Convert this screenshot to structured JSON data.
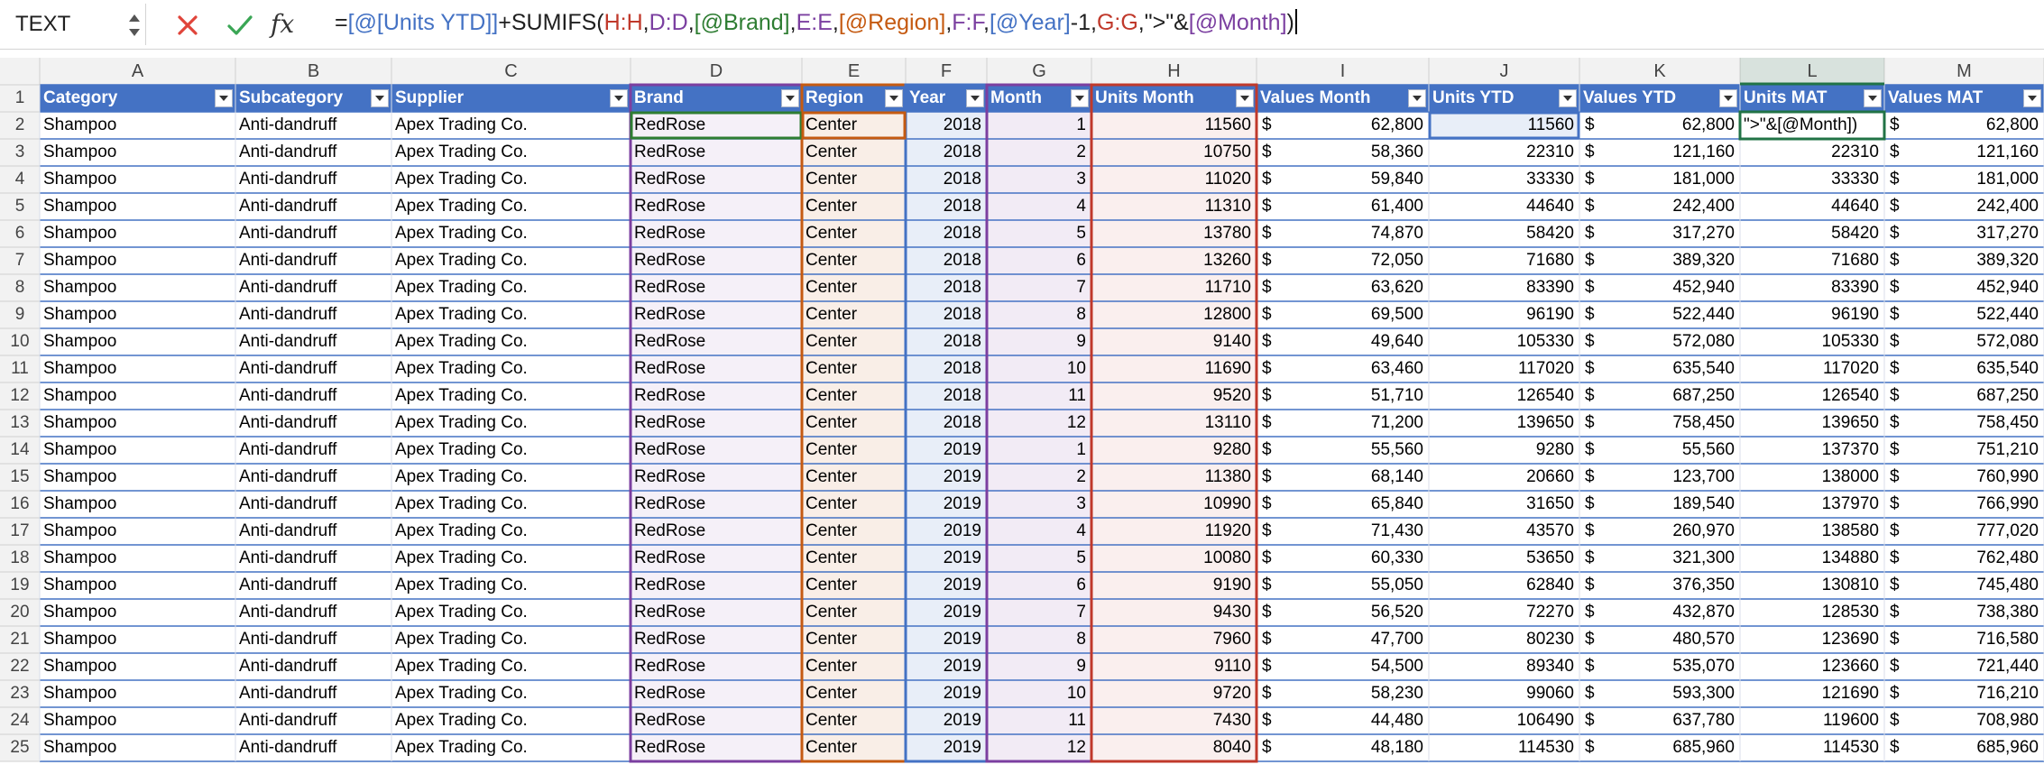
{
  "formula_bar": {
    "name_box": "TEXT",
    "cancel_icon": "x-icon",
    "enter_icon": "check-icon",
    "fx_label": "fx",
    "formula_tokens": [
      {
        "text": "=",
        "color": "#1f1f1f"
      },
      {
        "text": "[@[Units YTD]]",
        "color": "#4472c4"
      },
      {
        "text": "+SUMIFS(",
        "color": "#1f1f1f"
      },
      {
        "text": "H:H",
        "color": "#c0392b"
      },
      {
        "text": ",",
        "color": "#1f1f1f"
      },
      {
        "text": "D:D",
        "color": "#7b3fa0"
      },
      {
        "text": ",",
        "color": "#1f1f1f"
      },
      {
        "text": "[@Brand]",
        "color": "#2e7d32"
      },
      {
        "text": ",",
        "color": "#1f1f1f"
      },
      {
        "text": "E:E",
        "color": "#7b3fa0"
      },
      {
        "text": ",",
        "color": "#1f1f1f"
      },
      {
        "text": "[@Region]",
        "color": "#c55a11"
      },
      {
        "text": ",",
        "color": "#1f1f1f"
      },
      {
        "text": "F:F",
        "color": "#7b3fa0"
      },
      {
        "text": ",",
        "color": "#1f1f1f"
      },
      {
        "text": "[@Year]",
        "color": "#4472c4"
      },
      {
        "text": "-1,",
        "color": "#1f1f1f"
      },
      {
        "text": "G:G",
        "color": "#c0392b"
      },
      {
        "text": ",\">\"&",
        "color": "#1f1f1f"
      },
      {
        "text": "[@Month]",
        "color": "#7b3fa0"
      },
      {
        "text": ")",
        "color": "#1f1f1f"
      }
    ]
  },
  "colors": {
    "header_fill": "#4472c4",
    "row_band": "#ffffff",
    "row_line": "#4472c4",
    "ref_brand": "#7b3fa0",
    "ref_region": "#c55a11",
    "ref_year": "#4472c4",
    "ref_month": "#7b3fa0",
    "ref_units": "#c0392b",
    "active_cell": "#217346"
  },
  "sheet": {
    "column_letters": [
      "A",
      "B",
      "C",
      "D",
      "E",
      "F",
      "G",
      "H",
      "I",
      "J",
      "K",
      "L",
      "M"
    ],
    "headers": [
      "Category",
      "Subcategory",
      "Supplier",
      "Brand",
      "Region",
      "Year",
      "Month",
      "Units Month",
      "Values Month",
      "Units YTD",
      "Values YTD",
      "Units MAT",
      "Values MAT"
    ],
    "row_numbers": [
      "1",
      "2",
      "3",
      "4",
      "5",
      "6",
      "7",
      "8",
      "9",
      "10",
      "11",
      "12",
      "13",
      "14",
      "15",
      "16",
      "17",
      "18",
      "19",
      "20",
      "21",
      "22",
      "23",
      "24",
      "25"
    ],
    "editing_cell_text": "\">\"&[@Month])",
    "rows": [
      [
        "Shampoo",
        "Anti-dandruff",
        "Apex Trading Co.",
        "RedRose",
        "Center",
        "2018",
        "1",
        "11560",
        "62,800",
        "11560",
        "62,800",
        "",
        "62,800"
      ],
      [
        "Shampoo",
        "Anti-dandruff",
        "Apex Trading Co.",
        "RedRose",
        "Center",
        "2018",
        "2",
        "10750",
        "58,360",
        "22310",
        "121,160",
        "22310",
        "121,160"
      ],
      [
        "Shampoo",
        "Anti-dandruff",
        "Apex Trading Co.",
        "RedRose",
        "Center",
        "2018",
        "3",
        "11020",
        "59,840",
        "33330",
        "181,000",
        "33330",
        "181,000"
      ],
      [
        "Shampoo",
        "Anti-dandruff",
        "Apex Trading Co.",
        "RedRose",
        "Center",
        "2018",
        "4",
        "11310",
        "61,400",
        "44640",
        "242,400",
        "44640",
        "242,400"
      ],
      [
        "Shampoo",
        "Anti-dandruff",
        "Apex Trading Co.",
        "RedRose",
        "Center",
        "2018",
        "5",
        "13780",
        "74,870",
        "58420",
        "317,270",
        "58420",
        "317,270"
      ],
      [
        "Shampoo",
        "Anti-dandruff",
        "Apex Trading Co.",
        "RedRose",
        "Center",
        "2018",
        "6",
        "13260",
        "72,050",
        "71680",
        "389,320",
        "71680",
        "389,320"
      ],
      [
        "Shampoo",
        "Anti-dandruff",
        "Apex Trading Co.",
        "RedRose",
        "Center",
        "2018",
        "7",
        "11710",
        "63,620",
        "83390",
        "452,940",
        "83390",
        "452,940"
      ],
      [
        "Shampoo",
        "Anti-dandruff",
        "Apex Trading Co.",
        "RedRose",
        "Center",
        "2018",
        "8",
        "12800",
        "69,500",
        "96190",
        "522,440",
        "96190",
        "522,440"
      ],
      [
        "Shampoo",
        "Anti-dandruff",
        "Apex Trading Co.",
        "RedRose",
        "Center",
        "2018",
        "9",
        "9140",
        "49,640",
        "105330",
        "572,080",
        "105330",
        "572,080"
      ],
      [
        "Shampoo",
        "Anti-dandruff",
        "Apex Trading Co.",
        "RedRose",
        "Center",
        "2018",
        "10",
        "11690",
        "63,460",
        "117020",
        "635,540",
        "117020",
        "635,540"
      ],
      [
        "Shampoo",
        "Anti-dandruff",
        "Apex Trading Co.",
        "RedRose",
        "Center",
        "2018",
        "11",
        "9520",
        "51,710",
        "126540",
        "687,250",
        "126540",
        "687,250"
      ],
      [
        "Shampoo",
        "Anti-dandruff",
        "Apex Trading Co.",
        "RedRose",
        "Center",
        "2018",
        "12",
        "13110",
        "71,200",
        "139650",
        "758,450",
        "139650",
        "758,450"
      ],
      [
        "Shampoo",
        "Anti-dandruff",
        "Apex Trading Co.",
        "RedRose",
        "Center",
        "2019",
        "1",
        "9280",
        "55,560",
        "9280",
        "55,560",
        "137370",
        "751,210"
      ],
      [
        "Shampoo",
        "Anti-dandruff",
        "Apex Trading Co.",
        "RedRose",
        "Center",
        "2019",
        "2",
        "11380",
        "68,140",
        "20660",
        "123,700",
        "138000",
        "760,990"
      ],
      [
        "Shampoo",
        "Anti-dandruff",
        "Apex Trading Co.",
        "RedRose",
        "Center",
        "2019",
        "3",
        "10990",
        "65,840",
        "31650",
        "189,540",
        "137970",
        "766,990"
      ],
      [
        "Shampoo",
        "Anti-dandruff",
        "Apex Trading Co.",
        "RedRose",
        "Center",
        "2019",
        "4",
        "11920",
        "71,430",
        "43570",
        "260,970",
        "138580",
        "777,020"
      ],
      [
        "Shampoo",
        "Anti-dandruff",
        "Apex Trading Co.",
        "RedRose",
        "Center",
        "2019",
        "5",
        "10080",
        "60,330",
        "53650",
        "321,300",
        "134880",
        "762,480"
      ],
      [
        "Shampoo",
        "Anti-dandruff",
        "Apex Trading Co.",
        "RedRose",
        "Center",
        "2019",
        "6",
        "9190",
        "55,050",
        "62840",
        "376,350",
        "130810",
        "745,480"
      ],
      [
        "Shampoo",
        "Anti-dandruff",
        "Apex Trading Co.",
        "RedRose",
        "Center",
        "2019",
        "7",
        "9430",
        "56,520",
        "72270",
        "432,870",
        "128530",
        "738,380"
      ],
      [
        "Shampoo",
        "Anti-dandruff",
        "Apex Trading Co.",
        "RedRose",
        "Center",
        "2019",
        "8",
        "7960",
        "47,700",
        "80230",
        "480,570",
        "123690",
        "716,580"
      ],
      [
        "Shampoo",
        "Anti-dandruff",
        "Apex Trading Co.",
        "RedRose",
        "Center",
        "2019",
        "9",
        "9110",
        "54,500",
        "89340",
        "535,070",
        "123660",
        "721,440"
      ],
      [
        "Shampoo",
        "Anti-dandruff",
        "Apex Trading Co.",
        "RedRose",
        "Center",
        "2019",
        "10",
        "9720",
        "58,230",
        "99060",
        "593,300",
        "121690",
        "716,210"
      ],
      [
        "Shampoo",
        "Anti-dandruff",
        "Apex Trading Co.",
        "RedRose",
        "Center",
        "2019",
        "11",
        "7430",
        "44,480",
        "106490",
        "637,780",
        "119600",
        "708,980"
      ],
      [
        "Shampoo",
        "Anti-dandruff",
        "Apex Trading Co.",
        "RedRose",
        "Center",
        "2019",
        "12",
        "8040",
        "48,180",
        "114530",
        "685,960",
        "114530",
        "685,960"
      ]
    ]
  }
}
